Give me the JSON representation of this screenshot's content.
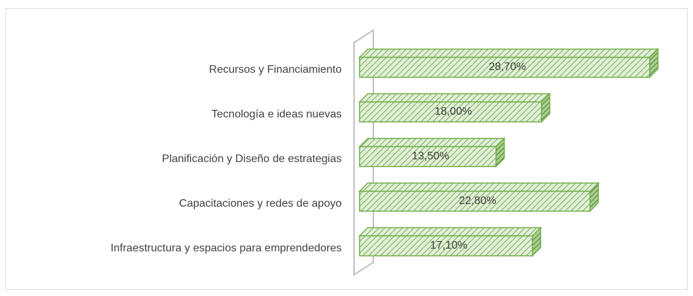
{
  "chart_data": {
    "type": "bar3d-horizontal",
    "categories": [
      "Recursos y Financiamiento",
      "Tecnología e ideas nuevas",
      "Planificación y Diseño de estrategias",
      "Capacitaciones y redes de apoyo",
      "Infraestructura y espacios para emprendedores"
    ],
    "values": [
      28.7,
      18.0,
      13.5,
      22.8,
      17.1
    ],
    "value_labels": [
      "28,70%",
      "18,00%",
      "13,50%",
      "22,80%",
      "17,10%"
    ],
    "color": "#70ad47"
  }
}
